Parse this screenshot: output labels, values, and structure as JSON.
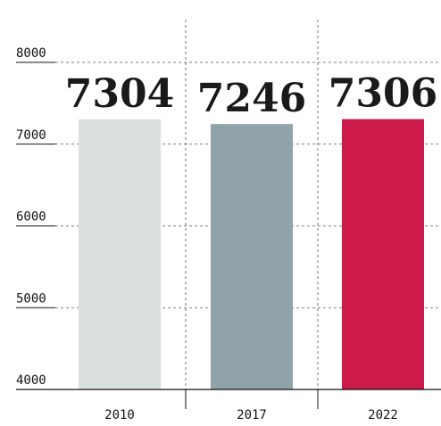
{
  "chart_data": {
    "type": "bar",
    "categories": [
      "2010",
      "2017",
      "2022"
    ],
    "values": [
      7304,
      7246,
      7306
    ],
    "colors": [
      "#d8dfdc",
      "#8fa3a8",
      "#cc1a4a"
    ],
    "ylim": [
      4000,
      8000
    ],
    "yticks": [
      4000,
      5000,
      6000,
      7000,
      8000
    ],
    "grid": true
  }
}
